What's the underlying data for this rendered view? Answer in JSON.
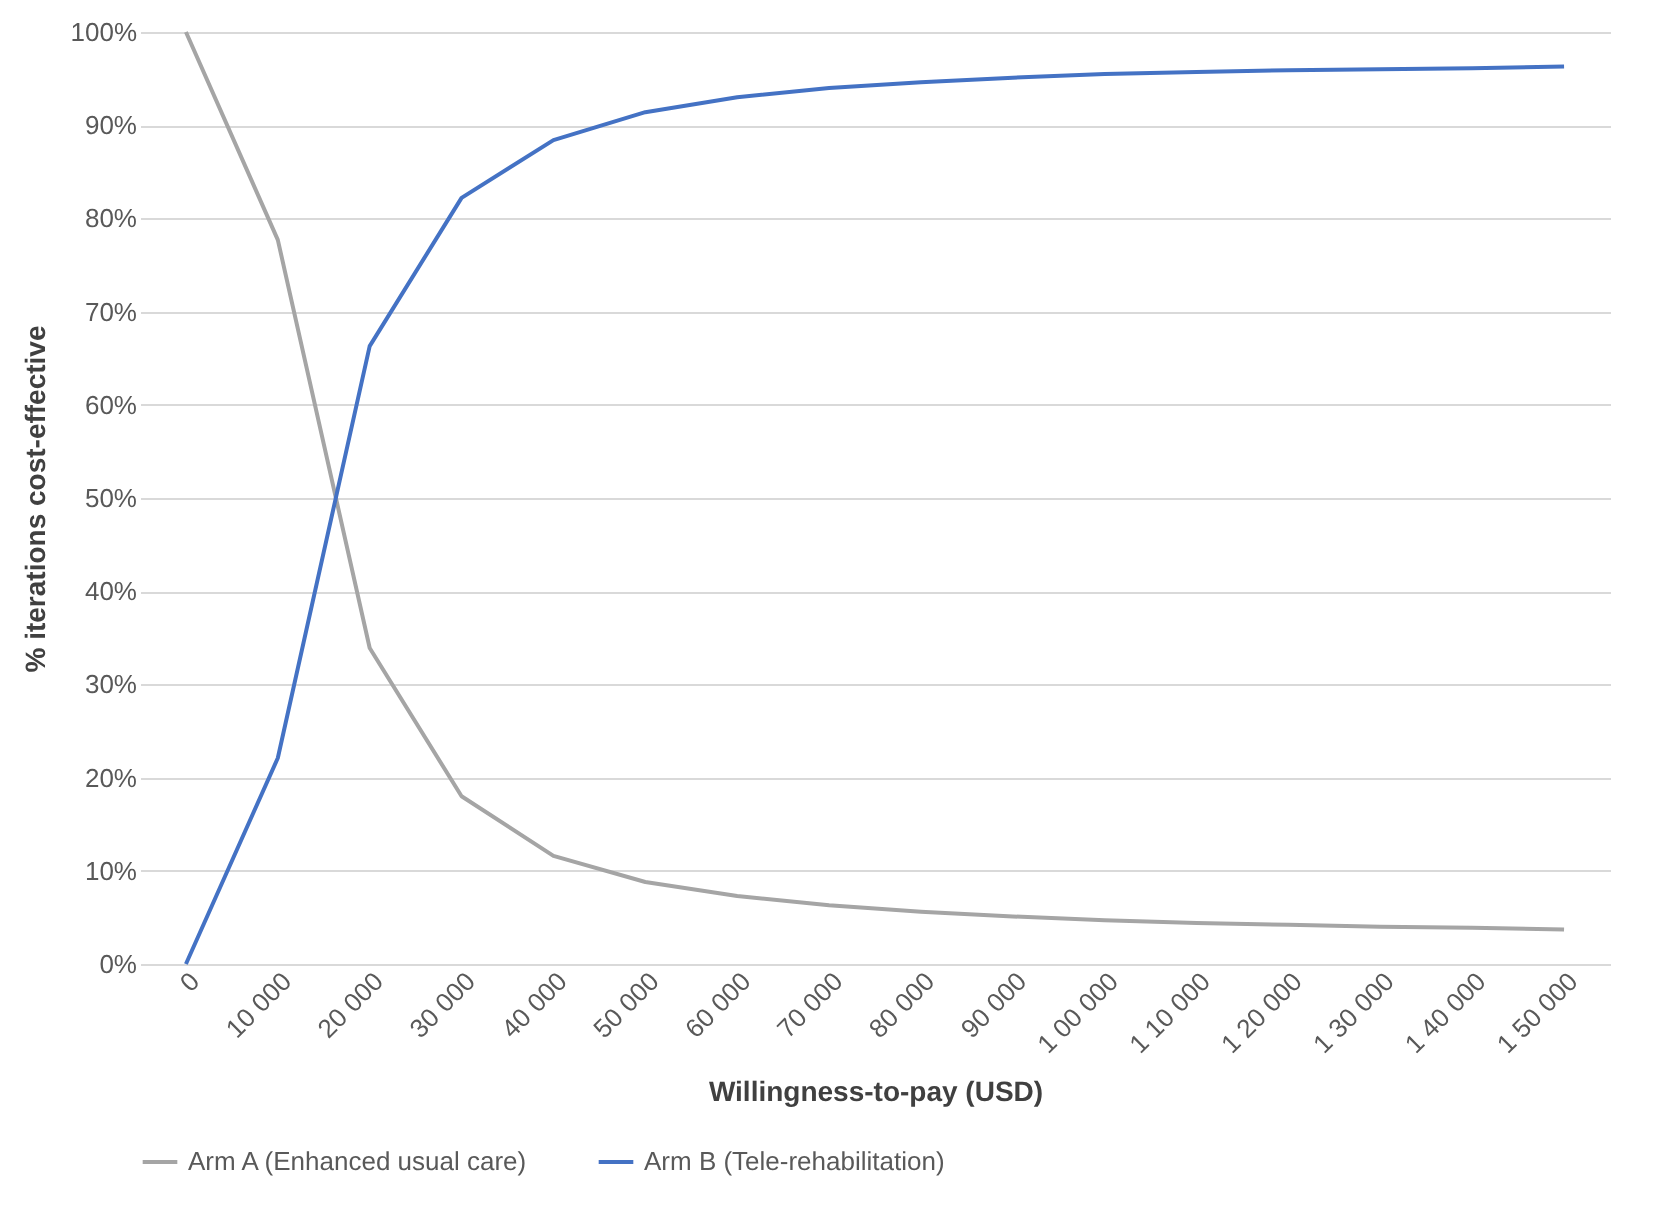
{
  "chart_data": {
    "type": "line",
    "xlabel": "Willingness-to-pay (USD)",
    "ylabel": "% iterations cost-effective",
    "categories": [
      "0",
      "10 000",
      "20 000",
      "30 000",
      "40 000",
      "50 000",
      "60 000",
      "70 000",
      "80 000",
      "90 000",
      "1 00 000",
      "1 10 000",
      "1 20 000",
      "1 30 000",
      "1 40 000",
      "1 50 000"
    ],
    "series": [
      {
        "name": "Arm A (Enhanced usual care)",
        "color": "#a5a5a5",
        "values": [
          100,
          77.7,
          33.9,
          18,
          11.6,
          8.8,
          7.3,
          6.3,
          5.6,
          5.1,
          4.7,
          4.4,
          4.2,
          4.0,
          3.9,
          3.7
        ]
      },
      {
        "name": "Arm B (Tele-rehabilitation)",
        "color": "#4472c4",
        "values": [
          0,
          22.1,
          66.3,
          82.2,
          88.4,
          91.4,
          93,
          94,
          94.6,
          95.1,
          95.5,
          95.7,
          95.9,
          96.0,
          96.1,
          96.3
        ]
      }
    ],
    "ylim": [
      0,
      100
    ],
    "yticks": [
      {
        "value": 0,
        "label": "0%"
      },
      {
        "value": 10,
        "label": "10%"
      },
      {
        "value": 20,
        "label": "20%"
      },
      {
        "value": 30,
        "label": "30%"
      },
      {
        "value": 40,
        "label": "40%"
      },
      {
        "value": 50,
        "label": "50%"
      },
      {
        "value": 60,
        "label": "60%"
      },
      {
        "value": 70,
        "label": "70%"
      },
      {
        "value": 80,
        "label": "80%"
      },
      {
        "value": 90,
        "label": "90%"
      },
      {
        "value": 100,
        "label": "100%"
      }
    ],
    "grid": "y",
    "legend": "bottom",
    "marker": "none",
    "line_style": "solid"
  }
}
